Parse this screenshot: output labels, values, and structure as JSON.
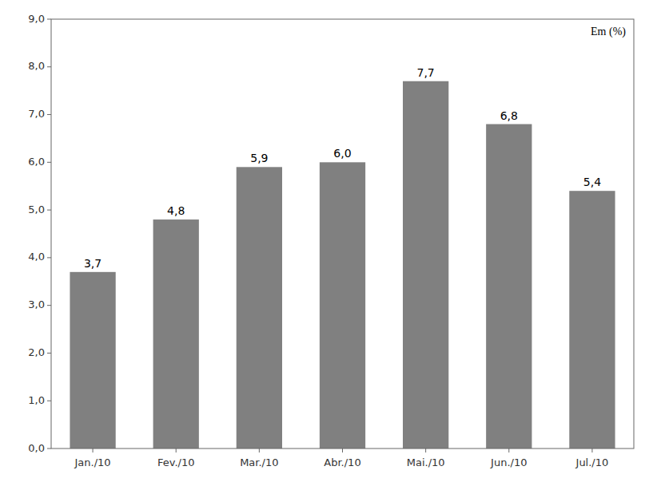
{
  "chart_data": {
    "type": "bar",
    "annotation": "Em (%)",
    "categories": [
      "Jan./10",
      "Fev./10",
      "Mar./10",
      "Abr./10",
      "Mai./10",
      "Jun./10",
      "Jul./10"
    ],
    "values": [
      3.7,
      4.8,
      5.9,
      6.0,
      7.7,
      6.8,
      5.4
    ],
    "value_labels": [
      "3,7",
      "4,8",
      "5,9",
      "6,0",
      "7,7",
      "6,8",
      "5,4"
    ],
    "data_labels": true,
    "color": "#808080",
    "ylim": [
      0,
      9.0
    ],
    "yticks": [
      {
        "value": 0.0,
        "label": "0,0"
      },
      {
        "value": 1.0,
        "label": "1,0"
      },
      {
        "value": 2.0,
        "label": "2,0"
      },
      {
        "value": 3.0,
        "label": "3,0"
      },
      {
        "value": 4.0,
        "label": "4,0"
      },
      {
        "value": 5.0,
        "label": "5,0"
      },
      {
        "value": 6.0,
        "label": "6,0"
      },
      {
        "value": 7.0,
        "label": "7,0"
      },
      {
        "value": 8.0,
        "label": "8,0"
      },
      {
        "value": 9.0,
        "label": "9,0"
      }
    ],
    "grid": false
  }
}
